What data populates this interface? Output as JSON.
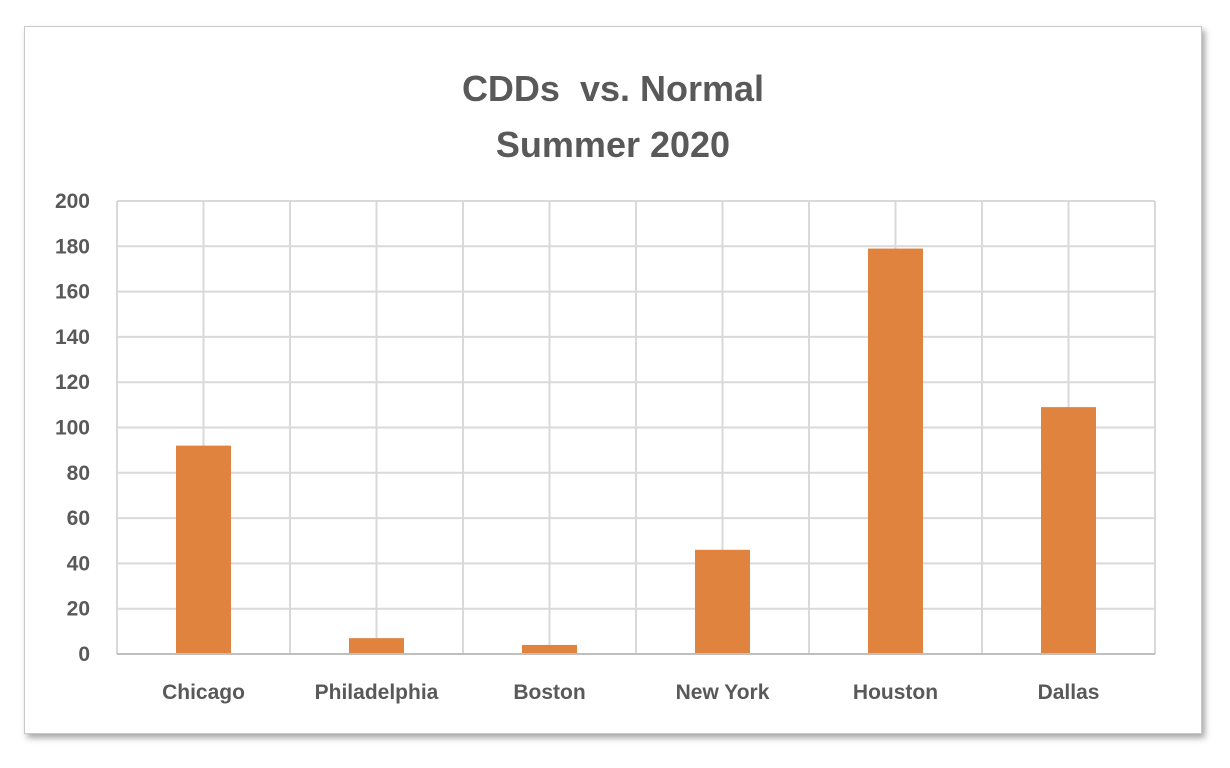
{
  "chart_data": {
    "type": "bar",
    "title": "CDDs  vs. Normal",
    "subtitle": "Summer 2020",
    "xlabel": "",
    "ylabel": "",
    "categories": [
      "Chicago",
      "Philadelphia",
      "Boston",
      "New York",
      "Houston",
      "Dallas"
    ],
    "values": [
      92,
      7,
      4,
      46,
      179,
      109
    ],
    "ylim": [
      0,
      200
    ],
    "yticks": [
      0,
      20,
      40,
      60,
      80,
      100,
      120,
      140,
      160,
      180,
      200
    ],
    "ytick_labels": [
      "0",
      "20",
      "40",
      "60",
      "80",
      "100",
      "120",
      "140",
      "160",
      "180",
      "200"
    ],
    "grid": "major and minor, both axes",
    "legend": "none",
    "colors": {
      "bar": "#E0833F",
      "grid": "#d9d9d9",
      "text": "#595959",
      "axis": "#bfbfbf"
    }
  }
}
